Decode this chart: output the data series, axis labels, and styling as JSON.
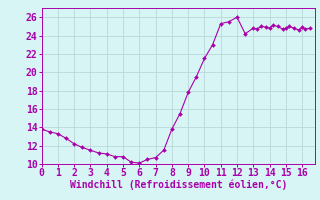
{
  "x": [
    0,
    0.5,
    1,
    1.5,
    2,
    2.5,
    3,
    3.5,
    4,
    4.5,
    5,
    5.5,
    6,
    6.5,
    7,
    7.5,
    8,
    8.5,
    9,
    9.5,
    10,
    10.5,
    11,
    11.5,
    12,
    12.5,
    13,
    13.2,
    13.5,
    13.8,
    14,
    14.2,
    14.5,
    14.8,
    15,
    15.2,
    15.5,
    15.8,
    16,
    16.2,
    16.5
  ],
  "y": [
    13.8,
    13.5,
    13.3,
    12.8,
    12.2,
    11.8,
    11.5,
    11.2,
    11.1,
    10.8,
    10.8,
    10.2,
    10.1,
    10.5,
    10.7,
    11.5,
    13.8,
    15.5,
    17.8,
    19.5,
    21.5,
    23.0,
    25.3,
    25.5,
    26.0,
    24.2,
    24.8,
    24.7,
    25.0,
    24.9,
    24.8,
    25.1,
    25.0,
    24.7,
    24.8,
    25.0,
    24.8,
    24.6,
    24.9,
    24.7,
    24.8
  ],
  "line_color": "#aa00aa",
  "marker_color": "#aa00aa",
  "bg_color": "#d8f5f5",
  "grid_color": "#b8d8d8",
  "axis_color": "#aa00aa",
  "tick_color": "#aa00aa",
  "xlabel": "Windchill (Refroidissement éolien,°C)",
  "xlim": [
    0,
    16.8
  ],
  "ylim": [
    10,
    27
  ],
  "yticks": [
    10,
    12,
    14,
    16,
    18,
    20,
    22,
    24,
    26
  ],
  "xticks": [
    0,
    1,
    2,
    3,
    4,
    5,
    6,
    7,
    8,
    9,
    10,
    11,
    12,
    13,
    14,
    15,
    16
  ],
  "font_size": 7.0
}
